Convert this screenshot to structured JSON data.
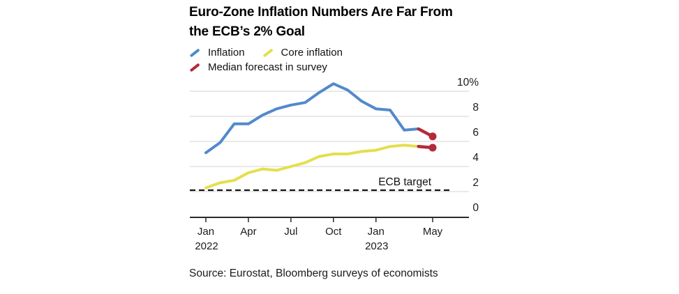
{
  "title": {
    "line1": "Euro-Zone Inflation Numbers Are Far From",
    "line2": "the ECB’s 2% Goal"
  },
  "legend": [
    {
      "label": "Inflation",
      "color": "#5289CC"
    },
    {
      "label": "Core inflation",
      "color": "#E4DF4D"
    },
    {
      "label": "Median forecast in survey",
      "color": "#B42A3A"
    }
  ],
  "source": "Source: Eurostat, Bloomberg surveys of economists",
  "chart_data": {
    "type": "line",
    "x": [
      "Jan 2022",
      "Feb 2022",
      "Mar 2022",
      "Apr 2022",
      "May 2022",
      "Jun 2022",
      "Jul 2022",
      "Aug 2022",
      "Sep 2022",
      "Oct 2022",
      "Nov 2022",
      "Dec 2022",
      "Jan 2023",
      "Feb 2023",
      "Mar 2023",
      "Apr 2023"
    ],
    "series": [
      {
        "name": "Inflation",
        "color": "#5289CC",
        "values": [
          5.1,
          5.9,
          7.4,
          7.4,
          8.1,
          8.6,
          8.9,
          9.1,
          9.9,
          10.6,
          10.1,
          9.2,
          8.6,
          8.5,
          6.9,
          7.0
        ]
      },
      {
        "name": "Core inflation",
        "color": "#E4DF4D",
        "values": [
          2.3,
          2.7,
          2.9,
          3.5,
          3.8,
          3.7,
          4.0,
          4.3,
          4.8,
          5.0,
          5.0,
          5.2,
          5.3,
          5.6,
          5.7,
          5.6
        ]
      }
    ],
    "forecast": {
      "name": "Median forecast in survey",
      "color": "#B42A3A",
      "x": "May 2023",
      "inflation": 6.4,
      "core": 5.5
    },
    "ecb_target": {
      "value": 2,
      "label": "ECB target"
    },
    "ylim": [
      0,
      10.8
    ],
    "yticks": [
      {
        "v": 10,
        "label": "10%"
      },
      {
        "v": 8,
        "label": "8"
      },
      {
        "v": 6,
        "label": "6"
      },
      {
        "v": 4,
        "label": "4"
      },
      {
        "v": 2,
        "label": "2"
      },
      {
        "v": 0,
        "label": "0"
      }
    ],
    "xticks": [
      {
        "i": 0,
        "label": "Jan",
        "sub": "2022"
      },
      {
        "i": 3,
        "label": "Apr",
        "sub": ""
      },
      {
        "i": 6,
        "label": "Jul",
        "sub": ""
      },
      {
        "i": 9,
        "label": "Oct",
        "sub": ""
      },
      {
        "i": 12,
        "label": "Jan",
        "sub": "2023"
      },
      {
        "i": 16,
        "label": "May",
        "sub": ""
      }
    ],
    "grid": true,
    "legend_position": "top-left",
    "colors": {
      "grid": "#DCDCDC",
      "axis": "#2B2B2B",
      "dashed_target": "#141414",
      "tick_text": "#1A1A1A"
    }
  }
}
